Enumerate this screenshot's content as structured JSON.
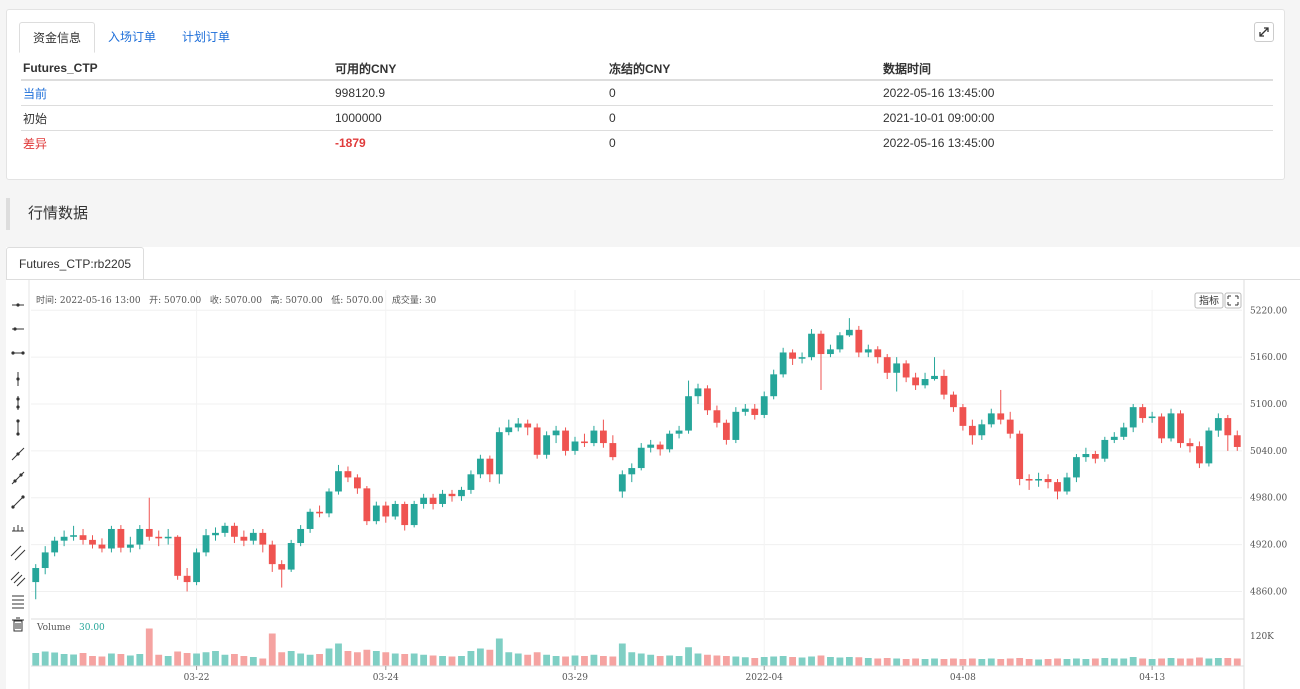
{
  "account": {
    "tabs": [
      "资金信息",
      "入场订单",
      "计划订单"
    ],
    "columns": [
      "Futures_CTP",
      "可用的CNY",
      "冻结的CNY",
      "数据时间"
    ],
    "rows": [
      {
        "label": "当前",
        "available": "998120.9",
        "frozen": "0",
        "time": "2022-05-16 13:45:00"
      },
      {
        "label": "初始",
        "available": "1000000",
        "frozen": "0",
        "time": "2021-10-01 09:00:00"
      },
      {
        "label": "差异",
        "available": "-1879",
        "frozen": "0",
        "time": "2022-05-16 13:45:00"
      }
    ]
  },
  "market": {
    "section_title": "行情数据",
    "chart_tab": "Futures_CTP:rb2205",
    "info_line": "时间: 2022-05-16 13:00   开: 5070.00   收: 5070.00   高: 5070.00   低: 5070.00   成交量: 30",
    "indicator_button": "指标",
    "volume_label": "Volume",
    "volume_value": "30.00",
    "colors": {
      "up": "#26a69a",
      "down": "#ef5350",
      "up_vol": "#7fcfc4",
      "down_vol": "#f5a3a1"
    }
  },
  "chart_data": {
    "type": "candlestick",
    "y_ticks": [
      5220,
      5160,
      5100,
      5040,
      4980,
      4920,
      4860
    ],
    "y_tick_labels": [
      "5220.00",
      "5160.00",
      "5100.00",
      "5040.00",
      "4980.00",
      "4920.00",
      "4860.00"
    ],
    "ylim": [
      4826,
      5246
    ],
    "volume_tick_label": "120K",
    "volume_tick_value": 120000,
    "x_labels": [
      {
        "label": "03-22",
        "index": 17
      },
      {
        "label": "03-24",
        "index": 37
      },
      {
        "label": "03-29",
        "index": 57
      },
      {
        "label": "2022-04",
        "index": 77
      },
      {
        "label": "04-08",
        "index": 98
      },
      {
        "label": "04-13",
        "index": 118
      }
    ],
    "candles": [
      {
        "o": 4872,
        "c": 4890,
        "h": 4895,
        "l": 4850,
        "v": 52000
      },
      {
        "o": 4890,
        "c": 4910,
        "h": 4918,
        "l": 4882,
        "v": 58000
      },
      {
        "o": 4910,
        "c": 4925,
        "h": 4930,
        "l": 4905,
        "v": 54000
      },
      {
        "o": 4925,
        "c": 4930,
        "h": 4938,
        "l": 4918,
        "v": 48000
      },
      {
        "o": 4930,
        "c": 4932,
        "h": 4944,
        "l": 4925,
        "v": 46000
      },
      {
        "o": 4932,
        "c": 4926,
        "h": 4940,
        "l": 4920,
        "v": 52000
      },
      {
        "o": 4926,
        "c": 4920,
        "h": 4932,
        "l": 4915,
        "v": 40000
      },
      {
        "o": 4920,
        "c": 4915,
        "h": 4928,
        "l": 4910,
        "v": 38000
      },
      {
        "o": 4915,
        "c": 4940,
        "h": 4944,
        "l": 4910,
        "v": 50000
      },
      {
        "o": 4940,
        "c": 4916,
        "h": 4945,
        "l": 4910,
        "v": 48000
      },
      {
        "o": 4916,
        "c": 4920,
        "h": 4930,
        "l": 4910,
        "v": 42000
      },
      {
        "o": 4920,
        "c": 4940,
        "h": 4945,
        "l": 4914,
        "v": 48000
      },
      {
        "o": 4940,
        "c": 4930,
        "h": 4980,
        "l": 4925,
        "v": 150000
      },
      {
        "o": 4930,
        "c": 4928,
        "h": 4938,
        "l": 4918,
        "v": 45000
      },
      {
        "o": 4928,
        "c": 4930,
        "h": 4940,
        "l": 4920,
        "v": 40000
      },
      {
        "o": 4930,
        "c": 4880,
        "h": 4932,
        "l": 4875,
        "v": 58000
      },
      {
        "o": 4880,
        "c": 4872,
        "h": 4890,
        "l": 4860,
        "v": 52000
      },
      {
        "o": 4872,
        "c": 4910,
        "h": 4915,
        "l": 4868,
        "v": 50000
      },
      {
        "o": 4910,
        "c": 4932,
        "h": 4940,
        "l": 4905,
        "v": 55000
      },
      {
        "o": 4932,
        "c": 4935,
        "h": 4942,
        "l": 4925,
        "v": 60000
      },
      {
        "o": 4935,
        "c": 4944,
        "h": 4948,
        "l": 4930,
        "v": 45000
      },
      {
        "o": 4944,
        "c": 4930,
        "h": 4948,
        "l": 4922,
        "v": 48000
      },
      {
        "o": 4930,
        "c": 4925,
        "h": 4938,
        "l": 4918,
        "v": 40000
      },
      {
        "o": 4925,
        "c": 4935,
        "h": 4940,
        "l": 4920,
        "v": 36000
      },
      {
        "o": 4935,
        "c": 4920,
        "h": 4940,
        "l": 4910,
        "v": 30000
      },
      {
        "o": 4920,
        "c": 4895,
        "h": 4925,
        "l": 4885,
        "v": 130000
      },
      {
        "o": 4895,
        "c": 4888,
        "h": 4900,
        "l": 4865,
        "v": 55000
      },
      {
        "o": 4888,
        "c": 4922,
        "h": 4926,
        "l": 4885,
        "v": 60000
      },
      {
        "o": 4922,
        "c": 4940,
        "h": 4945,
        "l": 4918,
        "v": 50000
      },
      {
        "o": 4940,
        "c": 4962,
        "h": 4966,
        "l": 4935,
        "v": 45000
      },
      {
        "o": 4962,
        "c": 4960,
        "h": 4970,
        "l": 4955,
        "v": 48000
      },
      {
        "o": 4960,
        "c": 4988,
        "h": 4992,
        "l": 4955,
        "v": 70000
      },
      {
        "o": 4988,
        "c": 5014,
        "h": 5022,
        "l": 4984,
        "v": 90000
      },
      {
        "o": 5014,
        "c": 5006,
        "h": 5020,
        "l": 5000,
        "v": 60000
      },
      {
        "o": 5006,
        "c": 4992,
        "h": 5010,
        "l": 4985,
        "v": 55000
      },
      {
        "o": 4992,
        "c": 4950,
        "h": 4995,
        "l": 4945,
        "v": 65000
      },
      {
        "o": 4950,
        "c": 4970,
        "h": 4975,
        "l": 4946,
        "v": 60000
      },
      {
        "o": 4970,
        "c": 4956,
        "h": 4975,
        "l": 4948,
        "v": 55000
      },
      {
        "o": 4956,
        "c": 4972,
        "h": 4976,
        "l": 4952,
        "v": 50000
      },
      {
        "o": 4972,
        "c": 4945,
        "h": 4975,
        "l": 4938,
        "v": 48000
      },
      {
        "o": 4945,
        "c": 4972,
        "h": 4976,
        "l": 4942,
        "v": 50000
      },
      {
        "o": 4972,
        "c": 4980,
        "h": 4985,
        "l": 4966,
        "v": 45000
      },
      {
        "o": 4980,
        "c": 4972,
        "h": 4985,
        "l": 4965,
        "v": 42000
      },
      {
        "o": 4972,
        "c": 4985,
        "h": 4990,
        "l": 4968,
        "v": 40000
      },
      {
        "o": 4985,
        "c": 4982,
        "h": 4990,
        "l": 4975,
        "v": 38000
      },
      {
        "o": 4982,
        "c": 4990,
        "h": 4994,
        "l": 4976,
        "v": 40000
      },
      {
        "o": 4990,
        "c": 5010,
        "h": 5015,
        "l": 4985,
        "v": 60000
      },
      {
        "o": 5010,
        "c": 5030,
        "h": 5035,
        "l": 5005,
        "v": 70000
      },
      {
        "o": 5030,
        "c": 5010,
        "h": 5034,
        "l": 5000,
        "v": 65000
      },
      {
        "o": 5010,
        "c": 5064,
        "h": 5070,
        "l": 4998,
        "v": 110000
      },
      {
        "o": 5064,
        "c": 5070,
        "h": 5080,
        "l": 5060,
        "v": 55000
      },
      {
        "o": 5070,
        "c": 5075,
        "h": 5082,
        "l": 5065,
        "v": 50000
      },
      {
        "o": 5075,
        "c": 5070,
        "h": 5080,
        "l": 5060,
        "v": 45000
      },
      {
        "o": 5070,
        "c": 5035,
        "h": 5075,
        "l": 5030,
        "v": 55000
      },
      {
        "o": 5035,
        "c": 5060,
        "h": 5065,
        "l": 5030,
        "v": 45000
      },
      {
        "o": 5060,
        "c": 5066,
        "h": 5072,
        "l": 5050,
        "v": 40000
      },
      {
        "o": 5066,
        "c": 5040,
        "h": 5070,
        "l": 5034,
        "v": 38000
      },
      {
        "o": 5040,
        "c": 5052,
        "h": 5058,
        "l": 5035,
        "v": 42000
      },
      {
        "o": 5052,
        "c": 5050,
        "h": 5062,
        "l": 5045,
        "v": 40000
      },
      {
        "o": 5050,
        "c": 5066,
        "h": 5072,
        "l": 5046,
        "v": 45000
      },
      {
        "o": 5066,
        "c": 5050,
        "h": 5080,
        "l": 5044,
        "v": 40000
      },
      {
        "o": 5050,
        "c": 5032,
        "h": 5060,
        "l": 5028,
        "v": 38000
      },
      {
        "o": 4988,
        "c": 5010,
        "h": 5015,
        "l": 4980,
        "v": 90000
      },
      {
        "o": 5010,
        "c": 5018,
        "h": 5024,
        "l": 5000,
        "v": 55000
      },
      {
        "o": 5018,
        "c": 5044,
        "h": 5050,
        "l": 5015,
        "v": 50000
      },
      {
        "o": 5044,
        "c": 5048,
        "h": 5054,
        "l": 5038,
        "v": 45000
      },
      {
        "o": 5048,
        "c": 5042,
        "h": 5052,
        "l": 5034,
        "v": 40000
      },
      {
        "o": 5042,
        "c": 5062,
        "h": 5066,
        "l": 5038,
        "v": 42000
      },
      {
        "o": 5062,
        "c": 5066,
        "h": 5072,
        "l": 5056,
        "v": 40000
      },
      {
        "o": 5066,
        "c": 5110,
        "h": 5130,
        "l": 5062,
        "v": 75000
      },
      {
        "o": 5110,
        "c": 5120,
        "h": 5126,
        "l": 5100,
        "v": 50000
      },
      {
        "o": 5120,
        "c": 5092,
        "h": 5124,
        "l": 5086,
        "v": 45000
      },
      {
        "o": 5092,
        "c": 5076,
        "h": 5098,
        "l": 5070,
        "v": 42000
      },
      {
        "o": 5076,
        "c": 5054,
        "h": 5080,
        "l": 5048,
        "v": 40000
      },
      {
        "o": 5054,
        "c": 5090,
        "h": 5096,
        "l": 5050,
        "v": 38000
      },
      {
        "o": 5090,
        "c": 5094,
        "h": 5100,
        "l": 5085,
        "v": 35000
      },
      {
        "o": 5094,
        "c": 5086,
        "h": 5100,
        "l": 5080,
        "v": 32000
      },
      {
        "o": 5086,
        "c": 5110,
        "h": 5116,
        "l": 5082,
        "v": 36000
      },
      {
        "o": 5110,
        "c": 5138,
        "h": 5144,
        "l": 5106,
        "v": 38000
      },
      {
        "o": 5138,
        "c": 5166,
        "h": 5172,
        "l": 5134,
        "v": 40000
      },
      {
        "o": 5166,
        "c": 5158,
        "h": 5170,
        "l": 5150,
        "v": 36000
      },
      {
        "o": 5158,
        "c": 5160,
        "h": 5166,
        "l": 5152,
        "v": 34000
      },
      {
        "o": 5160,
        "c": 5190,
        "h": 5196,
        "l": 5156,
        "v": 38000
      },
      {
        "o": 5190,
        "c": 5164,
        "h": 5194,
        "l": 5118,
        "v": 42000
      },
      {
        "o": 5164,
        "c": 5170,
        "h": 5176,
        "l": 5160,
        "v": 36000
      },
      {
        "o": 5170,
        "c": 5188,
        "h": 5192,
        "l": 5166,
        "v": 34000
      },
      {
        "o": 5188,
        "c": 5195,
        "h": 5210,
        "l": 5186,
        "v": 36000
      },
      {
        "o": 5195,
        "c": 5166,
        "h": 5200,
        "l": 5160,
        "v": 35000
      },
      {
        "o": 5166,
        "c": 5170,
        "h": 5176,
        "l": 5160,
        "v": 32000
      },
      {
        "o": 5170,
        "c": 5160,
        "h": 5174,
        "l": 5152,
        "v": 30000
      },
      {
        "o": 5160,
        "c": 5140,
        "h": 5164,
        "l": 5132,
        "v": 32000
      },
      {
        "o": 5140,
        "c": 5152,
        "h": 5160,
        "l": 5116,
        "v": 30000
      },
      {
        "o": 5152,
        "c": 5134,
        "h": 5156,
        "l": 5128,
        "v": 28000
      },
      {
        "o": 5134,
        "c": 5124,
        "h": 5140,
        "l": 5118,
        "v": 30000
      },
      {
        "o": 5124,
        "c": 5132,
        "h": 5140,
        "l": 5120,
        "v": 28000
      },
      {
        "o": 5132,
        "c": 5136,
        "h": 5160,
        "l": 5130,
        "v": 30000
      },
      {
        "o": 5136,
        "c": 5112,
        "h": 5144,
        "l": 5106,
        "v": 28000
      },
      {
        "o": 5112,
        "c": 5096,
        "h": 5116,
        "l": 5090,
        "v": 30000
      },
      {
        "o": 5096,
        "c": 5072,
        "h": 5100,
        "l": 5066,
        "v": 28000
      },
      {
        "o": 5072,
        "c": 5060,
        "h": 5080,
        "l": 5048,
        "v": 30000
      },
      {
        "o": 5060,
        "c": 5074,
        "h": 5080,
        "l": 5054,
        "v": 28000
      },
      {
        "o": 5074,
        "c": 5088,
        "h": 5094,
        "l": 5070,
        "v": 30000
      },
      {
        "o": 5088,
        "c": 5080,
        "h": 5118,
        "l": 5074,
        "v": 28000
      },
      {
        "o": 5080,
        "c": 5062,
        "h": 5090,
        "l": 5056,
        "v": 30000
      },
      {
        "o": 5062,
        "c": 5004,
        "h": 5066,
        "l": 4996,
        "v": 32000
      },
      {
        "o": 5004,
        "c": 5002,
        "h": 5010,
        "l": 4990,
        "v": 28000
      },
      {
        "o": 5002,
        "c": 5004,
        "h": 5012,
        "l": 4994,
        "v": 26000
      },
      {
        "o": 5004,
        "c": 5000,
        "h": 5010,
        "l": 4992,
        "v": 28000
      },
      {
        "o": 5000,
        "c": 4988,
        "h": 5004,
        "l": 4978,
        "v": 30000
      },
      {
        "o": 4988,
        "c": 5006,
        "h": 5012,
        "l": 4984,
        "v": 28000
      },
      {
        "o": 5006,
        "c": 5032,
        "h": 5036,
        "l": 5000,
        "v": 30000
      },
      {
        "o": 5032,
        "c": 5036,
        "h": 5044,
        "l": 5026,
        "v": 28000
      },
      {
        "o": 5036,
        "c": 5030,
        "h": 5040,
        "l": 5024,
        "v": 30000
      },
      {
        "o": 5030,
        "c": 5054,
        "h": 5058,
        "l": 5026,
        "v": 32000
      },
      {
        "o": 5054,
        "c": 5058,
        "h": 5064,
        "l": 5050,
        "v": 30000
      },
      {
        "o": 5058,
        "c": 5070,
        "h": 5076,
        "l": 5054,
        "v": 30000
      },
      {
        "o": 5070,
        "c": 5096,
        "h": 5100,
        "l": 5064,
        "v": 36000
      },
      {
        "o": 5096,
        "c": 5082,
        "h": 5100,
        "l": 5076,
        "v": 30000
      },
      {
        "o": 5082,
        "c": 5084,
        "h": 5090,
        "l": 5076,
        "v": 28000
      },
      {
        "o": 5084,
        "c": 5056,
        "h": 5088,
        "l": 5050,
        "v": 30000
      },
      {
        "o": 5056,
        "c": 5088,
        "h": 5094,
        "l": 5052,
        "v": 32000
      },
      {
        "o": 5088,
        "c": 5050,
        "h": 5092,
        "l": 5044,
        "v": 30000
      },
      {
        "o": 5050,
        "c": 5046,
        "h": 5056,
        "l": 5038,
        "v": 30000
      },
      {
        "o": 5046,
        "c": 5024,
        "h": 5052,
        "l": 5018,
        "v": 34000
      },
      {
        "o": 5024,
        "c": 5066,
        "h": 5070,
        "l": 5020,
        "v": 30000
      },
      {
        "o": 5066,
        "c": 5082,
        "h": 5088,
        "l": 5058,
        "v": 32000
      },
      {
        "o": 5082,
        "c": 5060,
        "h": 5086,
        "l": 5040,
        "v": 32000
      },
      {
        "o": 5060,
        "c": 5045,
        "h": 5066,
        "l": 5040,
        "v": 30000
      }
    ]
  }
}
